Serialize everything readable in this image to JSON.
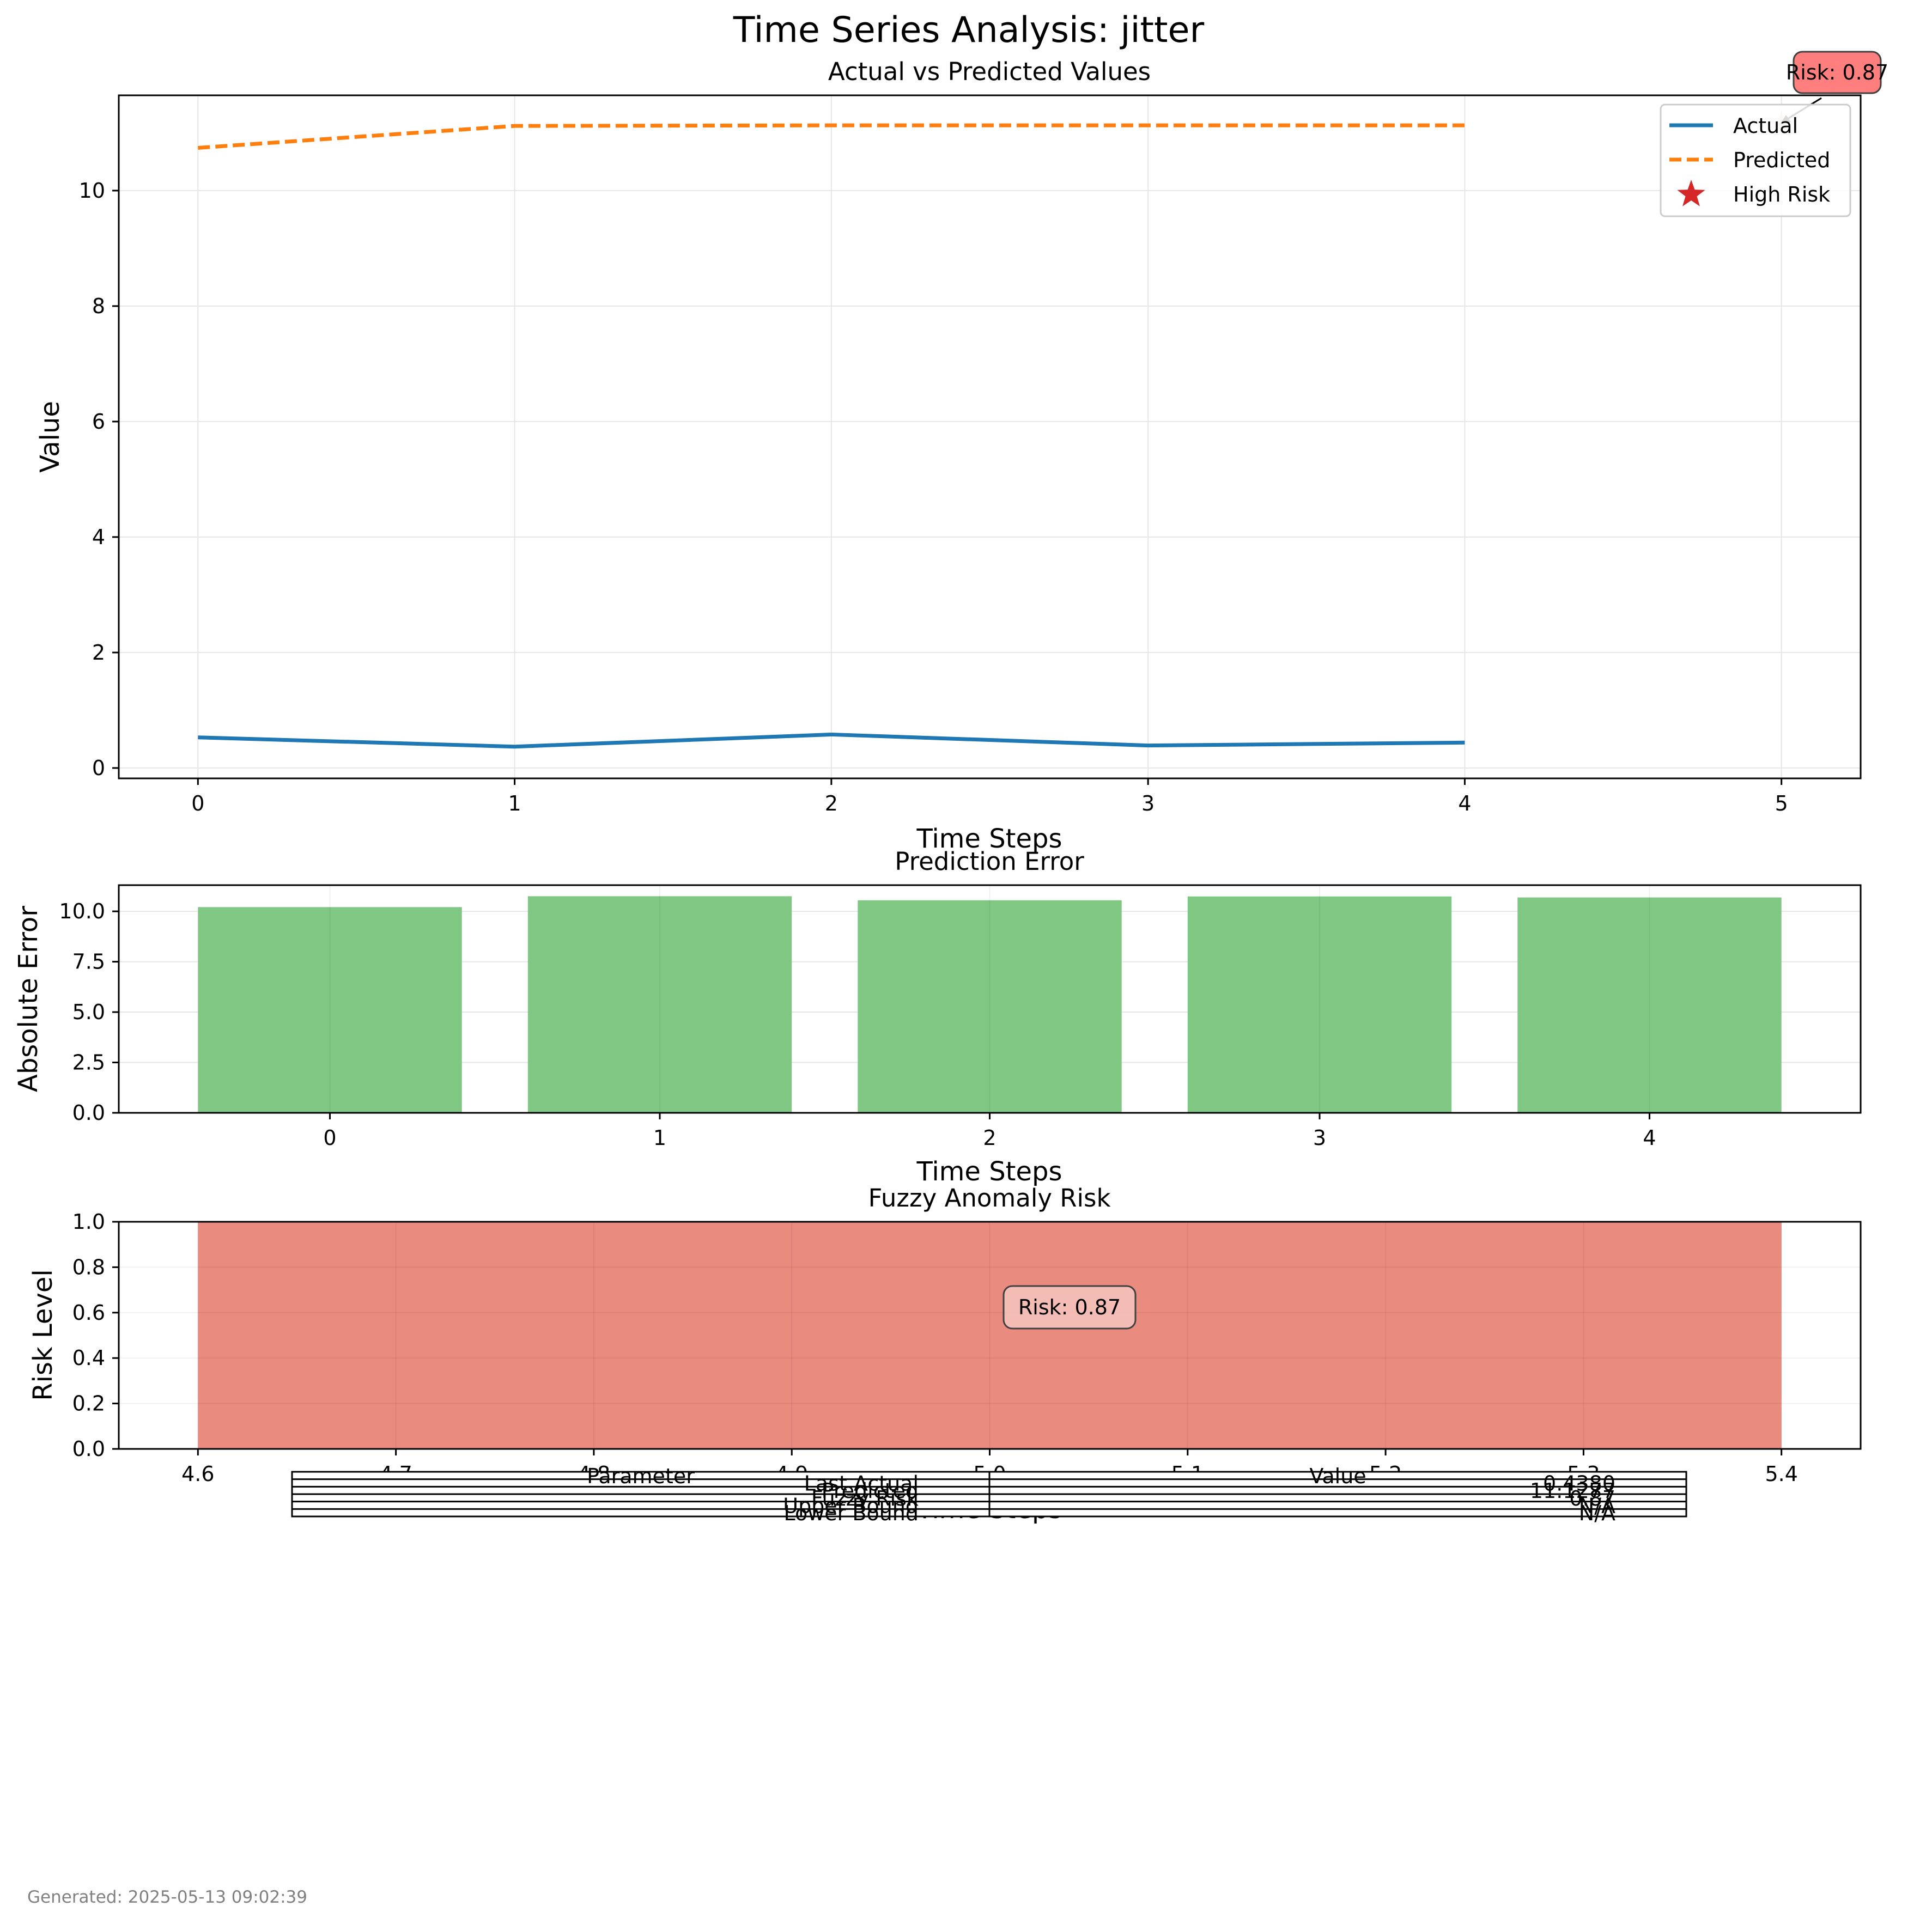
{
  "figure": {
    "suptitle": "Time Series Analysis: jitter",
    "footer": "Generated: 2025-05-13 09:02:39"
  },
  "colors": {
    "actual": "#1f77b4",
    "predicted": "#ff7f0e",
    "high_risk": "#d62728",
    "error_bar": "#81c784",
    "risk_span": "#ea8b80",
    "risk_box": "#ff7f7f",
    "risk_box_light": "#f5c4be",
    "grid": "#e6e6e6"
  },
  "chart_data": [
    {
      "id": "actual_vs_predicted",
      "type": "line",
      "title": "Actual vs Predicted Values",
      "xlabel": "Time Steps",
      "ylabel": "Value",
      "xlim": [
        -0.25,
        5.25
      ],
      "ylim": [
        -0.18,
        11.65
      ],
      "xticks": [
        0,
        1,
        2,
        3,
        4,
        5
      ],
      "yticks": [
        0,
        2,
        4,
        6,
        8,
        10
      ],
      "grid": true,
      "legend_position": "top-right",
      "series": [
        {
          "name": "Actual",
          "style": "solid",
          "x": [
            0,
            1,
            2,
            3,
            4
          ],
          "y": [
            0.53,
            0.37,
            0.58,
            0.39,
            0.44
          ]
        },
        {
          "name": "Predicted",
          "style": "dashed",
          "x": [
            0,
            1,
            2,
            3,
            4
          ],
          "y": [
            10.74,
            11.12,
            11.13,
            11.13,
            11.13
          ]
        },
        {
          "name": "High Risk",
          "style": "marker-star",
          "x": [
            5
          ],
          "y": [
            11.13
          ]
        }
      ],
      "annotations": [
        {
          "text": "Risk: 0.87",
          "x": 5,
          "y": 11.13
        }
      ]
    },
    {
      "id": "prediction_error",
      "type": "bar",
      "title": "Prediction Error",
      "xlabel": "Time Steps",
      "ylabel": "Absolute Error",
      "categories": [
        "0",
        "1",
        "2",
        "3",
        "4"
      ],
      "values": [
        10.21,
        10.75,
        10.55,
        10.74,
        10.69
      ],
      "xlim": [
        -0.64,
        4.64
      ],
      "ylim": [
        0,
        11.3
      ],
      "yticks": [
        "0.0",
        "2.5",
        "5.0",
        "7.5",
        "10.0"
      ],
      "ytick_values": [
        0,
        2.5,
        5,
        7.5,
        10
      ],
      "grid": true
    },
    {
      "id": "fuzzy_risk",
      "type": "bar",
      "title": "Fuzzy Anomaly Risk",
      "xlabel": "Time Steps",
      "ylabel": "Risk Level",
      "x": [
        5
      ],
      "values": [
        1.0
      ],
      "bar_span": [
        4.6,
        5.4
      ],
      "xlim": [
        4.56,
        5.44
      ],
      "ylim": [
        0,
        1.0
      ],
      "xticks": [
        "4.6",
        "4.7",
        "4.8",
        "4.9",
        "5.0",
        "5.1",
        "5.2",
        "5.3",
        "5.4"
      ],
      "xtick_values": [
        4.6,
        4.7,
        4.8,
        4.9,
        5.0,
        5.1,
        5.2,
        5.3,
        5.4
      ],
      "yticks": [
        "0.0",
        "0.2",
        "0.4",
        "0.6",
        "0.8",
        "1.0"
      ],
      "ytick_values": [
        0,
        0.2,
        0.4,
        0.6,
        0.8,
        1.0
      ],
      "grid": true,
      "annotations": [
        {
          "text": "Risk: 0.87",
          "x": 5.02,
          "y": 0.63
        }
      ]
    },
    {
      "id": "summary_table",
      "type": "table",
      "columns": [
        "Parameter",
        "Value"
      ],
      "rows": [
        [
          "Last Actual",
          "0.4380"
        ],
        [
          "Predicted",
          "11.1277"
        ],
        [
          "Fuzzy Risk",
          "0.87"
        ],
        [
          "Upper Bound",
          "N/A"
        ],
        [
          "Lower Bound",
          "N/A"
        ]
      ]
    }
  ]
}
